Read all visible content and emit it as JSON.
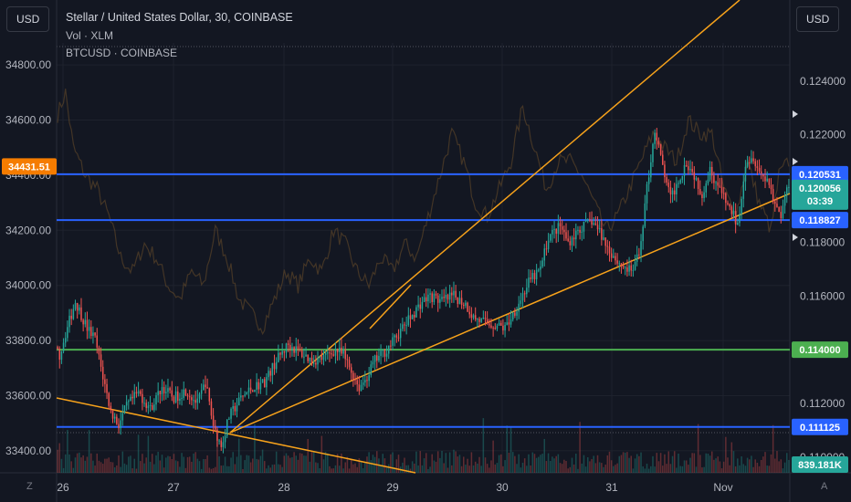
{
  "header": {
    "left_currency_label": "USD",
    "right_currency_label": "USD",
    "title": "Stellar / United States Dollar, 30, COINBASE",
    "volume_legend": "Vol · XLM",
    "overlay_legend": "BTCUSD · COINBASE"
  },
  "footer": {
    "left_toggle": "Z",
    "right_toggle": "A"
  },
  "colors": {
    "background": "#131722",
    "up": "#26a69a",
    "down": "#ef5350",
    "blue_line": "#2962ff",
    "green_line": "#4caf50",
    "trend": "#f7a21b",
    "overlay": "#6b4f2a"
  },
  "chart_data": {
    "type": "candlestick",
    "x_tick_labels": [
      "26",
      "27",
      "28",
      "29",
      "30",
      "31",
      "Nov"
    ],
    "left_axis": {
      "label": "USD",
      "tick_labels": [
        "34800.00",
        "34600.00",
        "34400.00",
        "34200.00",
        "34000.00",
        "33800.00",
        "33600.00",
        "33400.00"
      ],
      "ylim": [
        33320,
        34880
      ],
      "current_label": "34431.51"
    },
    "right_axis": {
      "label": "USD",
      "tick_labels": [
        "0.124000",
        "0.122000",
        "0.118000",
        "0.116000",
        "0.112000",
        "0.110000"
      ],
      "ylim": [
        0.10942,
        0.12542
      ]
    },
    "horizontal_levels": [
      {
        "label": "0.120531",
        "value": 0.120531,
        "color": "#2962ff"
      },
      {
        "label": "0.118827",
        "value": 0.118827,
        "color": "#2962ff"
      },
      {
        "label": "0.114000",
        "value": 0.114,
        "color": "#4caf50"
      },
      {
        "label": "0.111125",
        "value": 0.111125,
        "color": "#2962ff"
      }
    ],
    "last_price": {
      "label": "0.120056",
      "countdown": "03:39",
      "value": 0.120056
    },
    "volume_last": "839.181K",
    "price_anchors": [
      [
        0,
        0.1141
      ],
      [
        2,
        0.1138
      ],
      [
        5,
        0.1146
      ],
      [
        10,
        0.1158
      ],
      [
        16,
        0.1148
      ],
      [
        20,
        0.1144
      ],
      [
        24,
        0.113
      ],
      [
        28,
        0.1117
      ],
      [
        32,
        0.1112
      ],
      [
        36,
        0.1119
      ],
      [
        42,
        0.1124
      ],
      [
        48,
        0.1118
      ],
      [
        54,
        0.1126
      ],
      [
        60,
        0.1122
      ],
      [
        66,
        0.1125
      ],
      [
        72,
        0.112
      ],
      [
        76,
        0.1128
      ],
      [
        80,
        0.1112
      ],
      [
        84,
        0.1104
      ],
      [
        88,
        0.1115
      ],
      [
        94,
        0.1122
      ],
      [
        100,
        0.1126
      ],
      [
        106,
        0.1128
      ],
      [
        112,
        0.1136
      ],
      [
        118,
        0.1142
      ],
      [
        124,
        0.1139
      ],
      [
        130,
        0.1136
      ],
      [
        136,
        0.1137
      ],
      [
        142,
        0.114
      ],
      [
        146,
        0.1138
      ],
      [
        150,
        0.1132
      ],
      [
        154,
        0.1126
      ],
      [
        158,
        0.113
      ],
      [
        162,
        0.1136
      ],
      [
        168,
        0.114
      ],
      [
        174,
        0.1146
      ],
      [
        180,
        0.1152
      ],
      [
        186,
        0.1158
      ],
      [
        190,
        0.116
      ],
      [
        196,
        0.1158
      ],
      [
        202,
        0.116
      ],
      [
        208,
        0.1157
      ],
      [
        212,
        0.1152
      ],
      [
        218,
        0.115
      ],
      [
        224,
        0.1149
      ],
      [
        228,
        0.1148
      ],
      [
        234,
        0.1156
      ],
      [
        240,
        0.1165
      ],
      [
        246,
        0.117
      ],
      [
        250,
        0.1182
      ],
      [
        256,
        0.1186
      ],
      [
        260,
        0.118
      ],
      [
        266,
        0.1185
      ],
      [
        272,
        0.1188
      ],
      [
        276,
        0.1184
      ],
      [
        280,
        0.1178
      ],
      [
        286,
        0.1172
      ],
      [
        292,
        0.1169
      ],
      [
        296,
        0.1175
      ],
      [
        300,
        0.12
      ],
      [
        304,
        0.1222
      ],
      [
        308,
        0.1208
      ],
      [
        312,
        0.1196
      ],
      [
        316,
        0.1203
      ],
      [
        320,
        0.121
      ],
      [
        324,
        0.1205
      ],
      [
        328,
        0.1198
      ],
      [
        332,
        0.1207
      ],
      [
        336,
        0.1201
      ],
      [
        340,
        0.1195
      ],
      [
        344,
        0.119
      ],
      [
        346,
        0.1186
      ],
      [
        350,
        0.121
      ],
      [
        354,
        0.1212
      ],
      [
        358,
        0.1205
      ],
      [
        362,
        0.1203
      ],
      [
        364,
        0.1196
      ],
      [
        368,
        0.119
      ],
      [
        371,
        0.12
      ]
    ],
    "overlay_anchors": [
      [
        0,
        34620
      ],
      [
        4,
        34700
      ],
      [
        8,
        34500
      ],
      [
        14,
        34400
      ],
      [
        20,
        34350
      ],
      [
        26,
        34250
      ],
      [
        32,
        34100
      ],
      [
        38,
        34050
      ],
      [
        44,
        34150
      ],
      [
        50,
        34100
      ],
      [
        56,
        34000
      ],
      [
        62,
        33950
      ],
      [
        68,
        34050
      ],
      [
        74,
        34000
      ],
      [
        80,
        34200
      ],
      [
        86,
        34100
      ],
      [
        92,
        33950
      ],
      [
        98,
        33900
      ],
      [
        104,
        33850
      ],
      [
        110,
        33950
      ],
      [
        116,
        34050
      ],
      [
        122,
        34000
      ],
      [
        128,
        34100
      ],
      [
        134,
        34050
      ],
      [
        140,
        34200
      ],
      [
        146,
        34150
      ],
      [
        152,
        34050
      ],
      [
        158,
        34000
      ],
      [
        164,
        34100
      ],
      [
        170,
        34050
      ],
      [
        176,
        34150
      ],
      [
        182,
        34100
      ],
      [
        188,
        34250
      ],
      [
        194,
        34400
      ],
      [
        200,
        34550
      ],
      [
        206,
        34450
      ],
      [
        212,
        34300
      ],
      [
        218,
        34250
      ],
      [
        224,
        34350
      ],
      [
        230,
        34450
      ],
      [
        236,
        34650
      ],
      [
        242,
        34500
      ],
      [
        248,
        34350
      ],
      [
        254,
        34450
      ],
      [
        260,
        34450
      ],
      [
        266,
        34400
      ],
      [
        272,
        34300
      ],
      [
        278,
        34200
      ],
      [
        284,
        34250
      ],
      [
        290,
        34350
      ],
      [
        296,
        34450
      ],
      [
        302,
        34550
      ],
      [
        308,
        34500
      ],
      [
        314,
        34450
      ],
      [
        320,
        34600
      ],
      [
        326,
        34550
      ],
      [
        332,
        34550
      ],
      [
        338,
        34350
      ],
      [
        344,
        34250
      ],
      [
        350,
        34450
      ],
      [
        356,
        34300
      ],
      [
        362,
        34200
      ],
      [
        366,
        34400
      ],
      [
        371,
        34450
      ]
    ]
  }
}
